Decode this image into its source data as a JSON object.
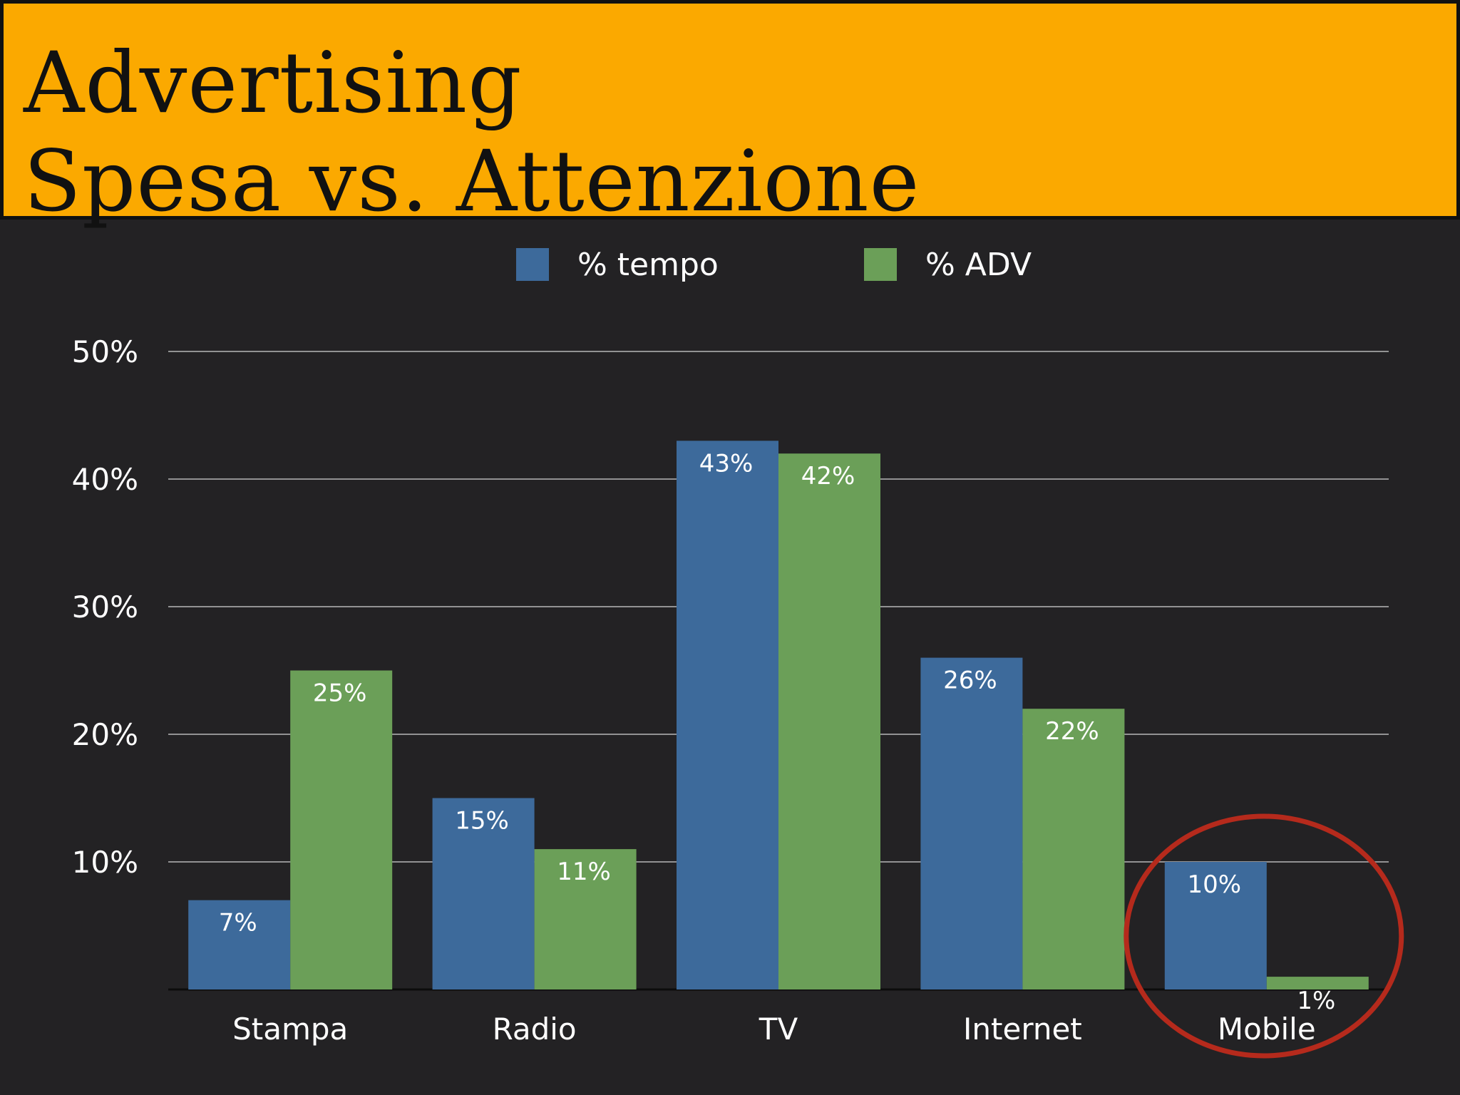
{
  "header": {
    "title_line1": "Advertising",
    "title_line2": "Spesa vs. Attenzione"
  },
  "colors": {
    "header_bg": "#fba900",
    "chart_bg": "#232224",
    "series_tempo": "#3d6a9b",
    "series_adv": "#6b9f58",
    "highlight_circle": "#b52a1c"
  },
  "chart_data": {
    "type": "bar",
    "categories": [
      "Stampa",
      "Radio",
      "TV",
      "Internet",
      "Mobile"
    ],
    "series": [
      {
        "name": "% tempo",
        "values": [
          7,
          15,
          43,
          26,
          10
        ],
        "labels": [
          "7%",
          "15%",
          "43%",
          "26%",
          "10%"
        ]
      },
      {
        "name": "% ADV",
        "values": [
          25,
          11,
          42,
          22,
          1
        ],
        "labels": [
          "25%",
          "11%",
          "42%",
          "22%",
          "1%"
        ]
      }
    ],
    "yticks": [
      10,
      20,
      30,
      40,
      50
    ],
    "ytick_labels": [
      "10%",
      "20%",
      "30%",
      "40%",
      "50%"
    ],
    "ylim": [
      0,
      50
    ],
    "grid": true,
    "legend_position": "top-center",
    "highlight_category": "Mobile"
  }
}
